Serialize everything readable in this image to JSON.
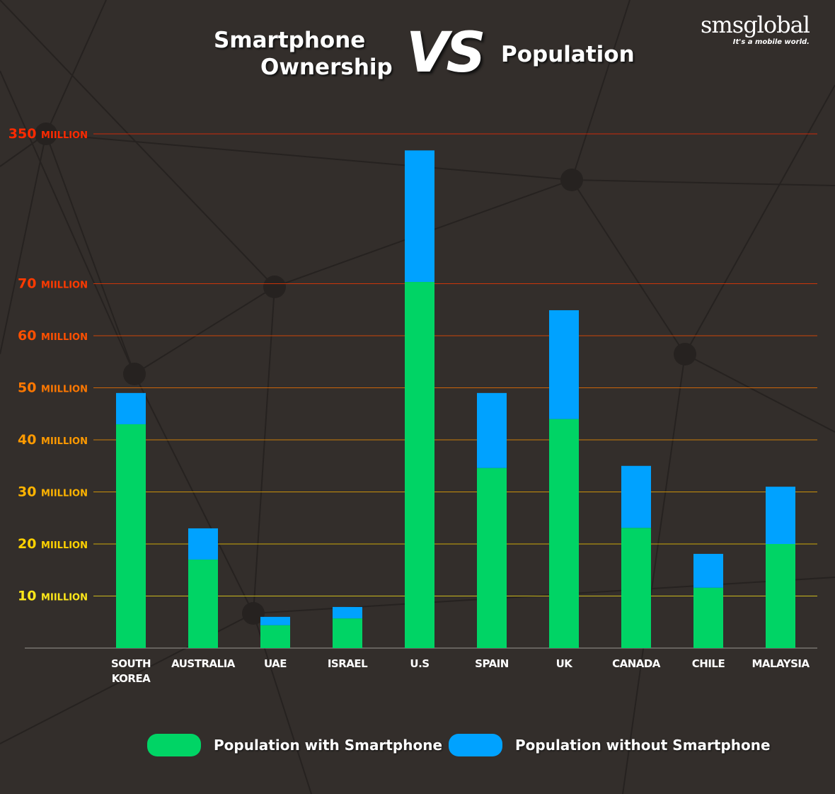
{
  "header": {
    "title_left_line1": "Smartphone",
    "title_left_line2": "Ownership",
    "title_vs": "VS",
    "title_right": "Population",
    "logo_name": "smsglobal",
    "logo_tagline": "It's a mobile world."
  },
  "chart_data": {
    "type": "bar",
    "stacked": true,
    "categories": [
      "SOUTH KOREA",
      "AUSTRALIA",
      "UAE",
      "ISRAEL",
      "U.S",
      "SPAIN",
      "UK",
      "CANADA",
      "CHILE",
      "MALAYSIA"
    ],
    "series": [
      {
        "name": "Population with Smartphone",
        "color": "#00d465",
        "values": [
          43,
          17,
          4.4,
          5.7,
          72.6,
          34.6,
          44,
          23.1,
          11.6,
          20
        ]
      },
      {
        "name": "Population without Smartphone",
        "color": "#00a2ff",
        "values": [
          6,
          6,
          1.6,
          2.2,
          246.4,
          14.4,
          20.9,
          11.9,
          6.5,
          11
        ]
      }
    ],
    "y_scale": "broken (0-70 linear, 70-350 compressed)",
    "ylim": [
      0,
      350
    ],
    "y_ticks": [
      {
        "value": 10,
        "label": "10",
        "unit": "MIILLION",
        "color": "#ffe81a"
      },
      {
        "value": 20,
        "label": "20",
        "unit": "MIILLION",
        "color": "#ffd200"
      },
      {
        "value": 30,
        "label": "30",
        "unit": "MIILLION",
        "color": "#ffb400"
      },
      {
        "value": 40,
        "label": "40",
        "unit": "MIILLION",
        "color": "#ff9a00"
      },
      {
        "value": 50,
        "label": "50",
        "unit": "MIILLION",
        "color": "#ff7800"
      },
      {
        "value": 60,
        "label": "60",
        "unit": "MIILLION",
        "color": "#ff5000"
      },
      {
        "value": 70,
        "label": "70",
        "unit": "MIILLION",
        "color": "#ff3a00"
      },
      {
        "value": 350,
        "label": "350",
        "unit": "MIILLION",
        "color": "#ff2a00"
      }
    ],
    "grid": true,
    "legend": "bottom"
  }
}
